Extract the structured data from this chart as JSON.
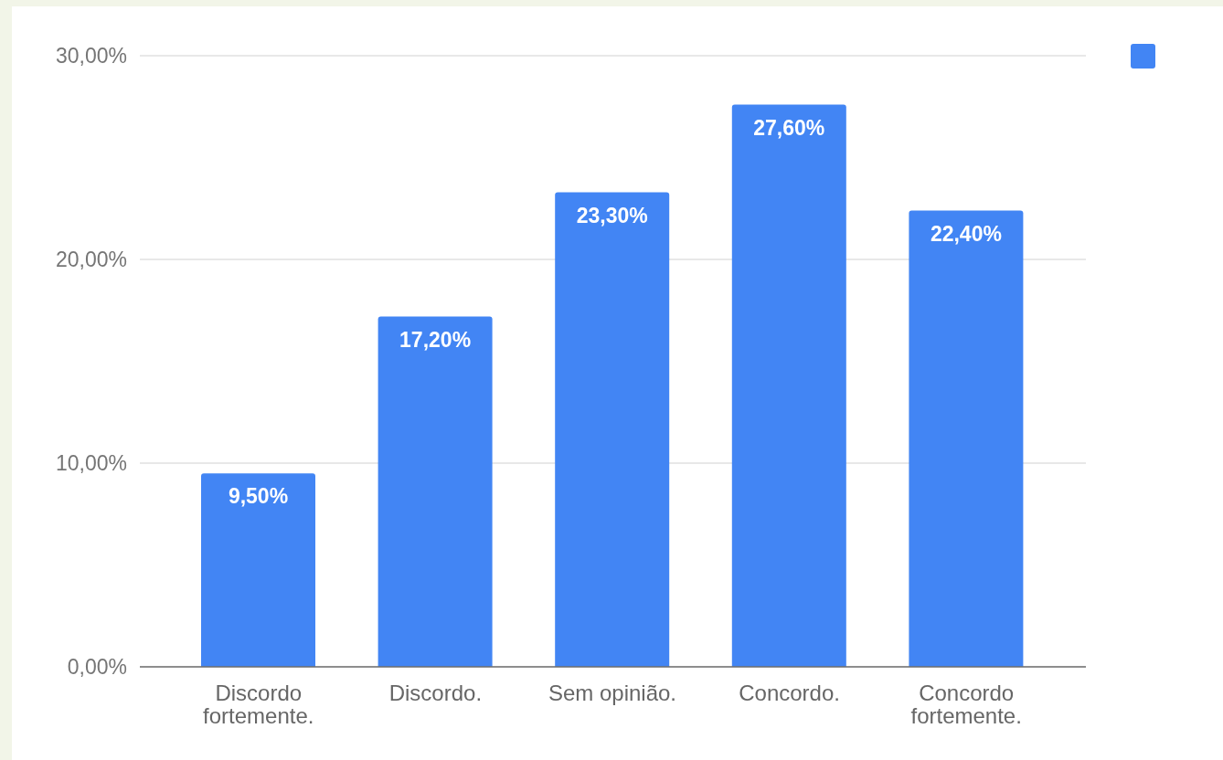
{
  "chart_data": {
    "type": "bar",
    "categories": [
      "Discordo fortemente.",
      "Discordo.",
      "Sem opinião.",
      "Concordo.",
      "Concordo fortemente."
    ],
    "series": [
      {
        "color": "#4285f4",
        "values": [
          9.5,
          17.2,
          23.3,
          27.6,
          22.4
        ],
        "value_labels": [
          "9,50%",
          "17,20%",
          "23,30%",
          "27,60%",
          "22,40%"
        ]
      }
    ],
    "ylim": [
      0,
      30
    ],
    "yticks": [
      {
        "value": 0,
        "label": "0,00%"
      },
      {
        "value": 10,
        "label": "10,00%"
      },
      {
        "value": 20,
        "label": "20,00%"
      },
      {
        "value": 30,
        "label": "30,00%"
      }
    ],
    "grid": "y"
  }
}
